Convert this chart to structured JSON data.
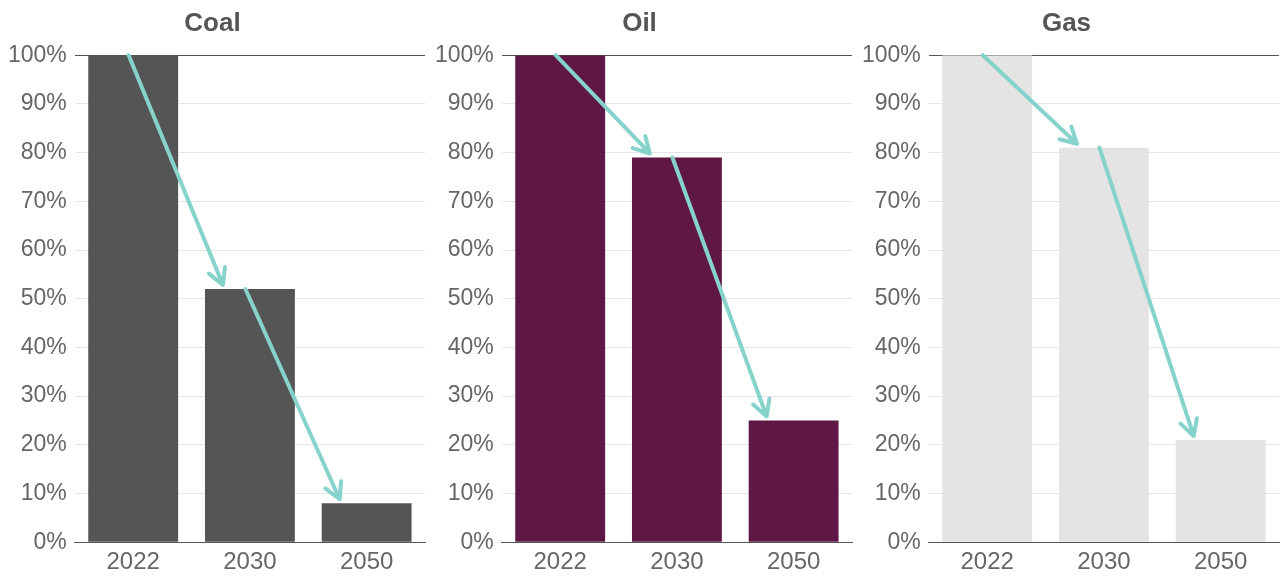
{
  "chart_data": [
    {
      "type": "bar",
      "title": "Coal",
      "categories": [
        "2022",
        "2030",
        "2050"
      ],
      "values": [
        100,
        52,
        8
      ],
      "color": "#555555",
      "ylim": [
        0,
        100
      ],
      "yticks": [
        {
          "value": 0,
          "label": "0%"
        },
        {
          "value": 10,
          "label": "10%"
        },
        {
          "value": 20,
          "label": "20%"
        },
        {
          "value": 30,
          "label": "30%"
        },
        {
          "value": 40,
          "label": "40%"
        },
        {
          "value": 50,
          "label": "50%"
        },
        {
          "value": 60,
          "label": "60%"
        },
        {
          "value": 70,
          "label": "70%"
        },
        {
          "value": 80,
          "label": "80%"
        },
        {
          "value": 90,
          "label": "90%"
        },
        {
          "value": 100,
          "label": "100%"
        }
      ],
      "grid": "y"
    },
    {
      "type": "bar",
      "title": "Oil",
      "categories": [
        "2022",
        "2030",
        "2050"
      ],
      "values": [
        100,
        79,
        25
      ],
      "color": "#5f1745",
      "ylim": [
        0,
        100
      ],
      "yticks": [
        {
          "value": 0,
          "label": "0%"
        },
        {
          "value": 10,
          "label": "10%"
        },
        {
          "value": 20,
          "label": "20%"
        },
        {
          "value": 30,
          "label": "30%"
        },
        {
          "value": 40,
          "label": "40%"
        },
        {
          "value": 50,
          "label": "50%"
        },
        {
          "value": 60,
          "label": "60%"
        },
        {
          "value": 70,
          "label": "70%"
        },
        {
          "value": 80,
          "label": "80%"
        },
        {
          "value": 90,
          "label": "90%"
        },
        {
          "value": 100,
          "label": "100%"
        }
      ],
      "grid": "y"
    },
    {
      "type": "bar",
      "title": "Gas",
      "categories": [
        "2022",
        "2030",
        "2050"
      ],
      "values": [
        100,
        81,
        21
      ],
      "color": "#e4e4e4",
      "ylim": [
        0,
        100
      ],
      "yticks": [
        {
          "value": 0,
          "label": "0%"
        },
        {
          "value": 10,
          "label": "10%"
        },
        {
          "value": 20,
          "label": "20%"
        },
        {
          "value": 30,
          "label": "30%"
        },
        {
          "value": 40,
          "label": "40%"
        },
        {
          "value": 50,
          "label": "50%"
        },
        {
          "value": 60,
          "label": "60%"
        },
        {
          "value": 70,
          "label": "70%"
        },
        {
          "value": 80,
          "label": "80%"
        },
        {
          "value": 90,
          "label": "90%"
        },
        {
          "value": 100,
          "label": "100%"
        }
      ],
      "grid": "y"
    }
  ]
}
